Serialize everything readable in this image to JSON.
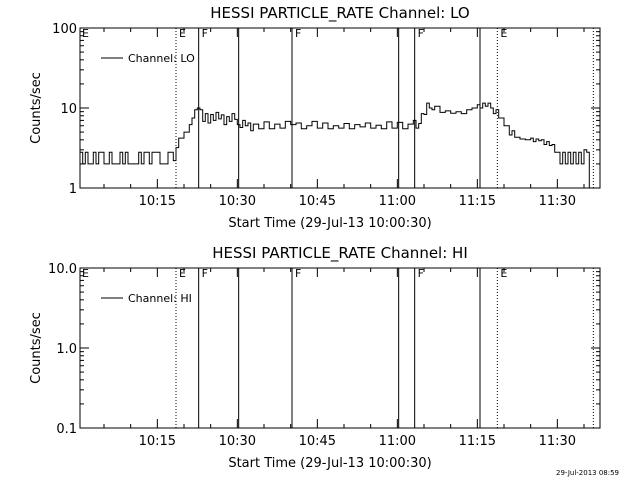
{
  "chart_data": [
    {
      "type": "line",
      "title": "HESSI PARTICLE_RATE Channel: LO",
      "xlabel": "Start Time (29-Jul-13 10:00:30)",
      "ylabel": "Counts/sec",
      "yscale": "log",
      "ylim": [
        1,
        100
      ],
      "xlim": [
        "10:00:30",
        "11:38:00"
      ],
      "x_ticks": [
        "10:15",
        "10:30",
        "10:45",
        "11:00",
        "11:15",
        "11:30"
      ],
      "y_ticks": [
        "1",
        "10",
        "100"
      ],
      "legend": {
        "entries": [
          "Channel: LO"
        ],
        "placement": "top-left"
      },
      "grid": false,
      "series": [
        {
          "name": "Channel: LO",
          "x": [
            "10:00:30",
            "10:01:00",
            "10:01:30",
            "10:02:00",
            "10:02:30",
            "10:03:00",
            "10:03:30",
            "10:04:00",
            "10:04:30",
            "10:05:00",
            "10:05:30",
            "10:06:00",
            "10:06:30",
            "10:07:00",
            "10:07:30",
            "10:08:00",
            "10:08:30",
            "10:09:00",
            "10:09:30",
            "10:10:00",
            "10:10:30",
            "10:11:00",
            "10:11:30",
            "10:12:00",
            "10:12:30",
            "10:13:00",
            "10:13:30",
            "10:14:00",
            "10:14:30",
            "10:15:00",
            "10:15:30",
            "10:16:00",
            "10:16:30",
            "10:17:00",
            "10:17:30",
            "10:18:00",
            "10:18:30",
            "10:19:00",
            "10:20:00",
            "10:21:00",
            "10:21:30",
            "10:22:00",
            "10:22:30",
            "10:23:00",
            "10:23:30",
            "10:24:00",
            "10:24:30",
            "10:25:00",
            "10:25:30",
            "10:26:00",
            "10:26:30",
            "10:27:00",
            "10:27:30",
            "10:28:00",
            "10:28:30",
            "10:29:00",
            "10:29:30",
            "10:30:00",
            "10:30:30",
            "10:31:00",
            "10:31:30",
            "10:32:00",
            "10:32:30",
            "10:33:00",
            "10:34:00",
            "10:35:00",
            "10:36:00",
            "10:37:00",
            "10:38:00",
            "10:39:00",
            "10:40:00",
            "10:41:00",
            "10:42:00",
            "10:43:00",
            "10:44:00",
            "10:45:00",
            "10:46:00",
            "10:47:00",
            "10:48:00",
            "10:49:00",
            "10:50:00",
            "10:51:00",
            "10:52:00",
            "10:53:00",
            "10:54:00",
            "10:55:00",
            "10:56:00",
            "10:57:00",
            "10:58:00",
            "10:59:00",
            "11:00:00",
            "11:01:00",
            "11:02:00",
            "11:03:00",
            "11:03:30",
            "11:04:00",
            "11:04:30",
            "11:05:00",
            "11:05:30",
            "11:06:00",
            "11:06:30",
            "11:07:00",
            "11:08:00",
            "11:09:00",
            "11:10:00",
            "11:11:00",
            "11:12:00",
            "11:13:00",
            "11:14:00",
            "11:15:00",
            "11:15:30",
            "11:16:00",
            "11:16:30",
            "11:17:00",
            "11:17:30",
            "11:18:00",
            "11:18:30",
            "11:19:00",
            "11:20:00",
            "11:21:00",
            "11:21:30",
            "11:22:00",
            "11:23:00",
            "11:24:00",
            "11:25:00",
            "11:25:30",
            "11:26:00",
            "11:26:30",
            "11:27:00",
            "11:27:30",
            "11:28:00",
            "11:28:30",
            "11:29:00",
            "11:29:30",
            "11:30:00",
            "11:30:30",
            "11:31:00",
            "11:31:30",
            "11:32:00",
            "11:32:30",
            "11:33:00",
            "11:33:30",
            "11:34:00",
            "11:34:30",
            "11:35:00",
            "11:35:30",
            "11:36:00"
          ],
          "values": [
            2.8,
            2,
            2.8,
            2,
            2,
            2.8,
            2,
            2.8,
            2.8,
            2,
            2,
            2.8,
            2,
            2,
            2,
            2.8,
            2,
            2.8,
            2,
            2,
            2,
            2,
            2.8,
            2,
            2.8,
            2.8,
            2,
            2.8,
            2.8,
            2.8,
            2,
            2,
            2,
            2.8,
            2.8,
            2.2,
            3.2,
            4.2,
            5.0,
            6.2,
            7.5,
            9.5,
            10,
            9.5,
            6.8,
            8.5,
            6.5,
            8.3,
            7.0,
            8.8,
            7.3,
            8.2,
            6.2,
            7.8,
            6.8,
            8.5,
            7.2,
            6.2,
            5.7,
            7.0,
            6.0,
            6.5,
            5.2,
            6.3,
            5.5,
            6.7,
            5.5,
            6.3,
            5.6,
            6.8,
            6.2,
            6.5,
            5.5,
            6.0,
            6.8,
            5.6,
            6.5,
            5.5,
            6.0,
            5.6,
            6.4,
            5.5,
            6.2,
            5.8,
            6.5,
            5.6,
            6.1,
            5.5,
            6.7,
            5.6,
            6.6,
            5.5,
            6.3,
            7.0,
            5.6,
            6.4,
            8.5,
            8.3,
            11.5,
            10,
            9.5,
            10.5,
            8.8,
            9.2,
            8.6,
            9.0,
            8.5,
            9.5,
            10.0,
            11.0,
            10.0,
            11.5,
            10.5,
            11.5,
            10.0,
            8.5,
            9.5,
            7.5,
            6.0,
            4.6,
            5.2,
            4.3,
            4.1,
            4.0,
            4.2,
            3.8,
            4.1,
            3.9,
            4.0,
            3.5,
            3.8,
            3.4,
            3.5,
            2.8,
            2.8,
            2.0,
            2.8,
            2.0,
            2.8,
            2.0,
            2.8,
            2.0,
            2.8,
            2.0,
            3.0,
            2.8,
            1.0
          ]
        }
      ],
      "markers": [
        {
          "time": "10:18:30",
          "label": "E",
          "style": "dotted"
        },
        {
          "time": "10:22:45",
          "label": "F",
          "style": "solid"
        },
        {
          "time": "10:30:15",
          "label": "",
          "style": "solid"
        },
        {
          "time": "10:40:15",
          "label": "F",
          "style": "solid"
        },
        {
          "time": "11:00:15",
          "label": "",
          "style": "solid"
        },
        {
          "time": "11:03:15",
          "label": "F",
          "style": "solid"
        },
        {
          "time": "11:15:30",
          "label": "",
          "style": "solid"
        },
        {
          "time": "11:18:45",
          "label": "E",
          "style": "dotted"
        },
        {
          "time": "11:36:45",
          "label": "",
          "style": "dotted"
        }
      ],
      "left_marker_label": "E"
    },
    {
      "type": "line",
      "title": "HESSI PARTICLE_RATE Channel: HI",
      "xlabel": "Start Time (29-Jul-13 10:00:30)",
      "ylabel": "Counts/sec",
      "yscale": "log",
      "ylim": [
        0.1,
        10
      ],
      "xlim": [
        "10:00:30",
        "11:38:00"
      ],
      "x_ticks": [
        "10:15",
        "10:30",
        "10:45",
        "11:00",
        "11:15",
        "11:30"
      ],
      "y_ticks": [
        "0.1",
        "1.0",
        "10.0"
      ],
      "legend": {
        "entries": [
          "Channel: HI"
        ],
        "placement": "top-left"
      },
      "grid": false,
      "series": [
        {
          "name": "Channel: HI",
          "x": [],
          "values": []
        }
      ],
      "markers": [
        {
          "time": "10:18:30",
          "label": "E",
          "style": "dotted"
        },
        {
          "time": "10:22:45",
          "label": "F",
          "style": "solid"
        },
        {
          "time": "10:30:15",
          "label": "",
          "style": "solid"
        },
        {
          "time": "10:40:15",
          "label": "F",
          "style": "solid"
        },
        {
          "time": "11:00:15",
          "label": "",
          "style": "solid"
        },
        {
          "time": "11:03:15",
          "label": "F",
          "style": "solid"
        },
        {
          "time": "11:15:30",
          "label": "",
          "style": "solid"
        },
        {
          "time": "11:18:45",
          "label": "E",
          "style": "dotted"
        },
        {
          "time": "11:36:45",
          "label": "",
          "style": "dotted"
        }
      ],
      "left_marker_label": "E"
    }
  ],
  "footer_timestamp": "29-Jul-2013 08:59"
}
